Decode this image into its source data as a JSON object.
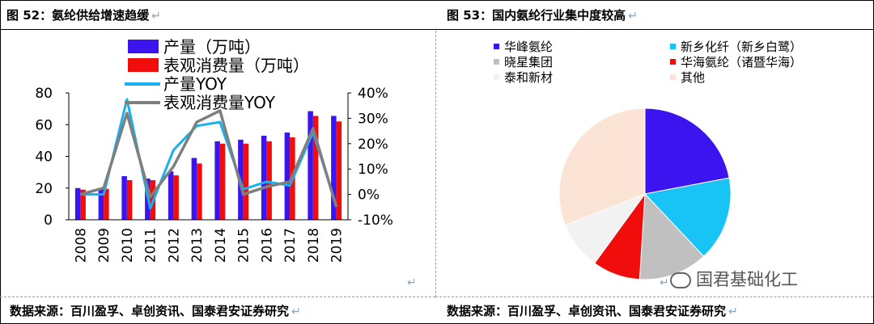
{
  "left_panel": {
    "title": "图 52：氨纶供给增速趋缓",
    "source": "数据来源：百川盈孚、卓创资讯、国泰君安证券研究"
  },
  "right_panel": {
    "title": "图 53：国内氨纶行业集中度较高",
    "source": "数据来源：百川盈孚、卓创资讯、国泰君安证券研究"
  },
  "watermark": {
    "text": "国君基础化工",
    "icon": "wechat-icon"
  },
  "return_mark": "↵",
  "chart_data": [
    {
      "type": "bar",
      "categories": [
        "2008",
        "2009",
        "2010",
        "2011",
        "2012",
        "2013",
        "2014",
        "2015",
        "2016",
        "2017",
        "2018",
        "2019"
      ],
      "series": [
        {
          "name": "产量（万吨）",
          "kind": "bar",
          "axis": "left",
          "color": "#3b14ef",
          "values": [
            20,
            20,
            27.5,
            26,
            30.5,
            39,
            49.5,
            50.5,
            53,
            55,
            68.5,
            65.5
          ]
        },
        {
          "name": "表观消费量（万吨）",
          "kind": "bar",
          "axis": "left",
          "color": "#f20d0d",
          "values": [
            19,
            19.5,
            25,
            25,
            28,
            35.5,
            48,
            48,
            49.5,
            52,
            65.5,
            62
          ]
        },
        {
          "name": "产量YOY",
          "kind": "line",
          "axis": "right",
          "color": "#17b0f0",
          "values": [
            0,
            0,
            37.5,
            -5.5,
            17.5,
            27,
            28.5,
            2,
            5,
            3.5,
            24.5,
            -4.5
          ]
        },
        {
          "name": "表观消费量YOY",
          "kind": "line",
          "axis": "right",
          "color": "#7f7f7f",
          "values": [
            0,
            2.5,
            32,
            -1,
            11,
            28.5,
            33,
            0,
            3,
            5,
            26,
            -5
          ]
        }
      ],
      "y_left": {
        "ylim": [
          0,
          80
        ],
        "ticks": [
          "0",
          "20",
          "40",
          "60",
          "80"
        ]
      },
      "y_right": {
        "ylim": [
          -10,
          40
        ],
        "ticks": [
          "-10%",
          "0%",
          "10%",
          "20%",
          "30%",
          "40%"
        ]
      },
      "legend": "top-left",
      "grid": false
    },
    {
      "type": "pie",
      "labels": [
        "华峰氨纶",
        "新乡化纤（新乡白鹭）",
        "晓星集团",
        "华海氨纶（诸暨华海）",
        "泰和新材",
        "其他"
      ],
      "values": [
        22,
        16,
        13,
        9,
        9,
        31
      ],
      "colors": [
        "#3b14ef",
        "#17c4f5",
        "#c0c0c0",
        "#f20d0d",
        "#f2f2f2",
        "#fbe4d5"
      ],
      "legend": "top"
    }
  ]
}
